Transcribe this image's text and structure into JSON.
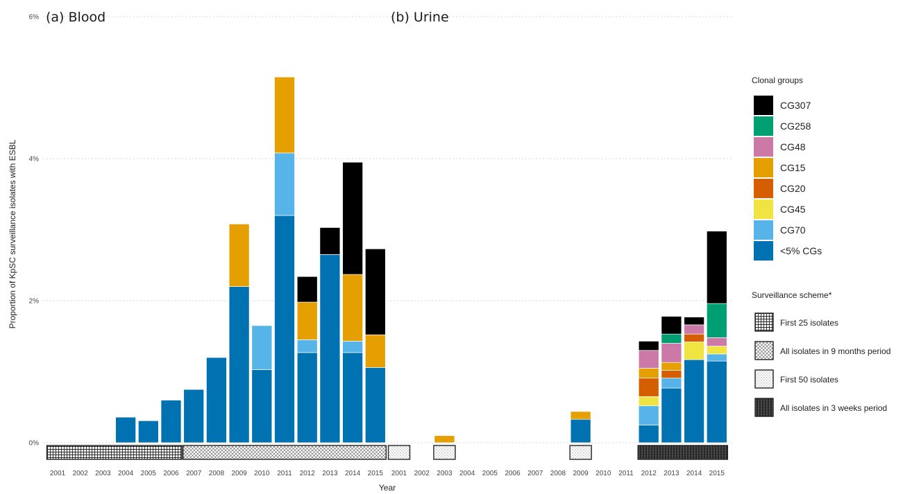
{
  "chart_data": {
    "type": "bar",
    "stacked": true,
    "ylabel": "Proportion of KpSC surveillance isolates with ESBL",
    "xlabel": "Year",
    "ylim": [
      0,
      6
    ],
    "yticks": [
      0,
      2,
      4,
      6
    ],
    "ytick_labels": [
      "0%",
      "2%",
      "4%",
      "6%"
    ],
    "grid": true,
    "legend_position": "right",
    "categories": [
      "2001",
      "2002",
      "2003",
      "2004",
      "2005",
      "2006",
      "2007",
      "2008",
      "2009",
      "2010",
      "2011",
      "2012",
      "2013",
      "2014",
      "2015"
    ],
    "series_order": [
      "<5% CGs",
      "CG70",
      "CG45",
      "CG20",
      "CG15",
      "CG48",
      "CG258",
      "CG307"
    ],
    "colors": {
      "CG307": "#000000",
      "CG258": "#009E73",
      "CG48": "#CC79A7",
      "CG15": "#E69F00",
      "CG20": "#D55E00",
      "CG45": "#F0E442",
      "CG70": "#56B4E9",
      "<5% CGs": "#0072B2"
    },
    "panels": [
      {
        "title": "(a) Blood",
        "scheme": [
          "grid",
          "grid",
          "grid",
          "grid",
          "grid",
          "grid",
          "cross",
          "cross",
          "cross",
          "cross",
          "cross",
          "cross",
          "cross",
          "cross",
          "cross"
        ],
        "series": [
          {
            "name": "<5% CGs",
            "values": [
              0,
              0,
              0,
              0.36,
              0.31,
              0.6,
              0.75,
              1.2,
              2.2,
              1.03,
              3.2,
              1.27,
              2.65,
              1.27,
              1.06
            ]
          },
          {
            "name": "CG70",
            "values": [
              0,
              0,
              0,
              0,
              0,
              0,
              0,
              0,
              0,
              0.62,
              0.88,
              0.18,
              0,
              0.16,
              0
            ]
          },
          {
            "name": "CG45",
            "values": [
              0,
              0,
              0,
              0,
              0,
              0,
              0,
              0,
              0,
              0,
              0,
              0,
              0,
              0,
              0
            ]
          },
          {
            "name": "CG20",
            "values": [
              0,
              0,
              0,
              0,
              0,
              0,
              0,
              0,
              0,
              0,
              0,
              0,
              0,
              0,
              0
            ]
          },
          {
            "name": "CG15",
            "values": [
              0,
              0,
              0,
              0,
              0,
              0,
              0,
              0,
              0.88,
              0,
              1.07,
              0.53,
              0,
              0.94,
              0.46
            ]
          },
          {
            "name": "CG48",
            "values": [
              0,
              0,
              0,
              0,
              0,
              0,
              0,
              0,
              0,
              0,
              0,
              0,
              0,
              0,
              0
            ]
          },
          {
            "name": "CG258",
            "values": [
              0,
              0,
              0,
              0,
              0,
              0,
              0,
              0,
              0,
              0,
              0,
              0,
              0,
              0,
              0
            ]
          },
          {
            "name": "CG307",
            "values": [
              0,
              0,
              0,
              0,
              0,
              0,
              0,
              0,
              0,
              0,
              0,
              0.36,
              0.38,
              1.58,
              1.21
            ]
          }
        ]
      },
      {
        "title": "(b) Urine",
        "scheme": [
          "fifty",
          "none",
          "fifty",
          "none",
          "none",
          "none",
          "none",
          "none",
          "fifty",
          "none",
          "none",
          "weeks",
          "weeks",
          "weeks",
          "weeks"
        ],
        "series": [
          {
            "name": "<5% CGs",
            "values": [
              0,
              0,
              0,
              0,
              0,
              0,
              0,
              0,
              0.33,
              0,
              0,
              0.25,
              0.77,
              1.17,
              1.15
            ]
          },
          {
            "name": "CG70",
            "values": [
              0,
              0,
              0,
              0,
              0,
              0,
              0,
              0,
              0,
              0,
              0,
              0.27,
              0.14,
              0,
              0.1
            ]
          },
          {
            "name": "CG45",
            "values": [
              0,
              0,
              0,
              0,
              0,
              0,
              0,
              0,
              0,
              0,
              0,
              0.13,
              0,
              0.25,
              0.11
            ]
          },
          {
            "name": "CG20",
            "values": [
              0,
              0,
              0,
              0,
              0,
              0,
              0,
              0,
              0,
              0,
              0,
              0.26,
              0.11,
              0.11,
              0
            ]
          },
          {
            "name": "CG15",
            "values": [
              0,
              0,
              0.1,
              0,
              0,
              0,
              0,
              0,
              0.11,
              0,
              0,
              0.14,
              0.11,
              0,
              0
            ]
          },
          {
            "name": "CG48",
            "values": [
              0,
              0,
              0,
              0,
              0,
              0,
              0,
              0,
              0,
              0,
              0,
              0.25,
              0.27,
              0.13,
              0.12
            ]
          },
          {
            "name": "CG258",
            "values": [
              0,
              0,
              0,
              0,
              0,
              0,
              0,
              0,
              0,
              0,
              0,
              0,
              0.13,
              0,
              0.48
            ]
          },
          {
            "name": "CG307",
            "values": [
              0,
              0,
              0,
              0,
              0,
              0,
              0,
              0,
              0,
              0,
              0,
              0.13,
              0.25,
              0.11,
              1.02
            ]
          }
        ]
      }
    ],
    "legend": {
      "title": "Clonal groups",
      "entries": [
        "CG307",
        "CG258",
        "CG48",
        "CG15",
        "CG20",
        "CG45",
        "CG70",
        "<5% CGs"
      ]
    },
    "scheme_legend": {
      "title": "Surveillance scheme*",
      "entries": [
        {
          "key": "grid",
          "label": "First 25 isolates"
        },
        {
          "key": "cross",
          "label": "All isolates in 9 months period"
        },
        {
          "key": "fifty",
          "label": "First 50 isolates"
        },
        {
          "key": "weeks",
          "label": "All isolates in 3 weeks period"
        }
      ]
    }
  }
}
